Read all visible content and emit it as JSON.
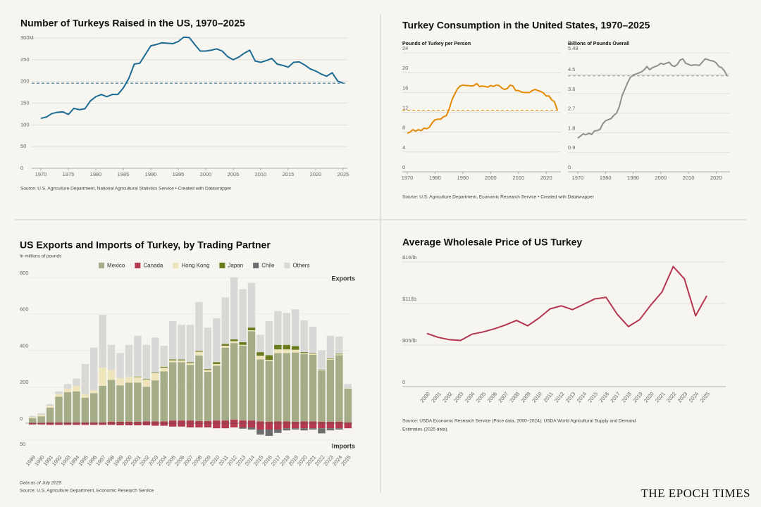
{
  "chart_data": [
    {
      "type": "line",
      "title": "Number of Turkeys Raised in the US, 1970–2025",
      "x": [
        1970,
        1971,
        1972,
        1973,
        1974,
        1975,
        1976,
        1977,
        1978,
        1979,
        1980,
        1981,
        1982,
        1983,
        1984,
        1985,
        1986,
        1987,
        1988,
        1989,
        1990,
        1991,
        1992,
        1993,
        1994,
        1995,
        1996,
        1997,
        1998,
        1999,
        2000,
        2001,
        2002,
        2003,
        2004,
        2005,
        2006,
        2007,
        2008,
        2009,
        2010,
        2011,
        2012,
        2013,
        2014,
        2015,
        2016,
        2017,
        2018,
        2019,
        2020,
        2021,
        2022,
        2023,
        2024,
        2025
      ],
      "values": [
        115,
        118,
        126,
        129,
        130,
        124,
        138,
        135,
        137,
        155,
        165,
        170,
        165,
        170,
        170,
        185,
        207,
        240,
        242,
        262,
        282,
        285,
        289,
        288,
        287,
        292,
        302,
        301,
        285,
        270,
        270,
        272,
        275,
        270,
        257,
        250,
        256,
        265,
        272,
        247,
        244,
        248,
        253,
        240,
        237,
        233,
        244,
        245,
        238,
        229,
        224,
        217,
        212,
        220,
        201,
        196
      ],
      "color": "#1d6b95",
      "reference": 196,
      "xlim": [
        1970,
        2025
      ],
      "xticks": [
        1970,
        1975,
        1980,
        1985,
        1990,
        1995,
        2000,
        2005,
        2010,
        2015,
        2020,
        2025
      ],
      "ylim": [
        0,
        300
      ],
      "yticks": [
        0,
        50,
        100,
        150,
        200,
        250,
        {
          "value": 300,
          "label": "300M"
        }
      ],
      "grid": true,
      "source": [
        "Source: U.S. Agriculture Department, National Agricultural Statistics Service • Created with Datawrapper"
      ]
    },
    {
      "type": "line",
      "title": "Turkey Consumption in the United States, 1970–2025",
      "subtitle": "Pounds of Turkey per Person",
      "x": [
        1970,
        1971,
        1972,
        1973,
        1974,
        1975,
        1976,
        1977,
        1978,
        1979,
        1980,
        1981,
        1982,
        1983,
        1984,
        1985,
        1986,
        1987,
        1988,
        1989,
        1990,
        1991,
        1992,
        1993,
        1994,
        1995,
        1996,
        1997,
        1998,
        1999,
        2000,
        2001,
        2002,
        2003,
        2004,
        2005,
        2006,
        2007,
        2008,
        2009,
        2010,
        2011,
        2012,
        2013,
        2014,
        2015,
        2016,
        2017,
        2018,
        2019,
        2020,
        2021,
        2022,
        2023,
        2024
      ],
      "values": [
        7.8,
        8.0,
        8.5,
        8.2,
        8.5,
        8.3,
        8.8,
        8.7,
        9.0,
        9.9,
        10.5,
        10.6,
        10.6,
        11.1,
        11.3,
        12.5,
        14.4,
        15.6,
        16.7,
        17.3,
        17.5,
        17.4,
        17.4,
        17.3,
        17.4,
        17.8,
        17.2,
        17.3,
        17.2,
        17.1,
        17.4,
        17.2,
        17.5,
        17.4,
        16.9,
        16.6,
        16.8,
        17.5,
        17.3,
        16.4,
        16.4,
        16.1,
        16.0,
        16.0,
        16.0,
        16.4,
        16.6,
        16.4,
        16.2,
        15.9,
        15.3,
        15.3,
        14.5,
        14.1,
        12.4
      ],
      "color": "#e58a00",
      "reference": 12.4,
      "xlim": [
        1970,
        2024
      ],
      "xticks": [
        1970,
        1980,
        1990,
        2000,
        2010,
        2020
      ],
      "ylim": [
        0,
        24
      ],
      "yticks": [
        0,
        4,
        8,
        12,
        16,
        20,
        24
      ],
      "grid": true,
      "source": [
        "Source: U.S. Agriculture Department, Economic Research Service • Created with Datawrapper"
      ]
    },
    {
      "type": "line",
      "subtitle": "Billions of Pounds Overall",
      "x": [
        1970,
        1971,
        1972,
        1973,
        1974,
        1975,
        1976,
        1977,
        1978,
        1979,
        1980,
        1981,
        1982,
        1983,
        1984,
        1985,
        1986,
        1987,
        1988,
        1989,
        1990,
        1991,
        1992,
        1993,
        1994,
        1995,
        1996,
        1997,
        1998,
        1999,
        2000,
        2001,
        2002,
        2003,
        2004,
        2005,
        2006,
        2007,
        2008,
        2009,
        2010,
        2011,
        2012,
        2013,
        2014,
        2015,
        2016,
        2017,
        2018,
        2019,
        2020,
        2021,
        2022,
        2023,
        2024
      ],
      "values": [
        1.55,
        1.65,
        1.75,
        1.7,
        1.78,
        1.72,
        1.88,
        1.9,
        1.95,
        2.2,
        2.35,
        2.4,
        2.45,
        2.6,
        2.7,
        3.0,
        3.5,
        3.8,
        4.1,
        4.35,
        4.45,
        4.5,
        4.55,
        4.6,
        4.7,
        4.85,
        4.7,
        4.8,
        4.85,
        4.9,
        5.0,
        4.95,
        5.0,
        5.05,
        4.9,
        4.85,
        4.95,
        5.15,
        5.2,
        5.0,
        4.95,
        4.9,
        4.92,
        4.92,
        4.9,
        5.05,
        5.2,
        5.17,
        5.12,
        5.1,
        5.02,
        4.85,
        4.8,
        4.65,
        4.42
      ],
      "color": "#8f8f8f",
      "reference": 4.42,
      "xlim": [
        1970,
        2024
      ],
      "xticks": [
        1970,
        1980,
        1990,
        2000,
        2010,
        2020
      ],
      "ylim": [
        0,
        5.48
      ],
      "yticks": [
        0,
        0.9,
        1.8,
        2.7,
        3.6,
        4.5,
        5.48
      ],
      "grid": true
    },
    {
      "type": "stacked_bar",
      "title": "US Exports and Imports of Turkey, by Trading Partner",
      "unit_label": "In millions of pounds",
      "exports_label": "Exports",
      "imports_label": "Imports",
      "categories": [
        "1989",
        "1990",
        "1991",
        "1992",
        "1993",
        "1994",
        "1995",
        "1996",
        "1997",
        "1998",
        "1999",
        "2000",
        "2001",
        "2002",
        "2003",
        "2004",
        "2005",
        "2006",
        "2007",
        "2008",
        "2009",
        "2010",
        "2011",
        "2012",
        "2013",
        "2014",
        "2015",
        "2016",
        "2017",
        "2018",
        "2019",
        "2020",
        "2021",
        "2022",
        "2023",
        "2024",
        "2025"
      ],
      "series": [
        {
          "name": "Mexico",
          "color": "#a4ad87",
          "values": [
            25,
            35,
            80,
            140,
            165,
            170,
            135,
            160,
            200,
            230,
            200,
            215,
            215,
            190,
            225,
            275,
            320,
            320,
            305,
            360,
            270,
            300,
            400,
            420,
            410,
            490,
            340,
            335,
            375,
            375,
            380,
            370,
            365,
            280,
            340,
            365,
            185
          ]
        },
        {
          "name": "Canada",
          "color": "#b33a4f",
          "values": [
            3,
            3,
            5,
            5,
            5,
            5,
            5,
            5,
            5,
            8,
            8,
            8,
            8,
            10,
            10,
            10,
            15,
            15,
            15,
            12,
            12,
            15,
            15,
            20,
            15,
            15,
            10,
            8,
            10,
            10,
            8,
            10,
            10,
            8,
            8,
            8,
            5
          ]
        },
        {
          "name": "Hong Kong",
          "color": "#efe5bd",
          "values": [
            5,
            8,
            10,
            15,
            20,
            30,
            20,
            15,
            100,
            55,
            40,
            30,
            30,
            40,
            40,
            20,
            10,
            10,
            10,
            20,
            10,
            10,
            10,
            10,
            5,
            5,
            20,
            5,
            20,
            20,
            15,
            5,
            5,
            2,
            5,
            5,
            2
          ]
        },
        {
          "name": "Japan",
          "color": "#6a7d1e",
          "values": [
            0,
            0,
            0,
            0,
            0,
            0,
            0,
            0,
            0,
            0,
            0,
            0,
            3,
            3,
            3,
            5,
            5,
            5,
            5,
            5,
            5,
            10,
            10,
            10,
            15,
            15,
            20,
            25,
            25,
            25,
            20,
            5,
            3,
            2,
            3,
            3,
            0
          ]
        },
        {
          "name": "Chile",
          "color": "#6e6e6e",
          "values": [
            0,
            0,
            0,
            0,
            0,
            0,
            0,
            0,
            0,
            0,
            0,
            0,
            0,
            0,
            0,
            0,
            0,
            0,
            0,
            0,
            0,
            0,
            0,
            0,
            0,
            0,
            0,
            0,
            0,
            0,
            0,
            0,
            0,
            0,
            0,
            0,
            0
          ]
        },
        {
          "name": "Others",
          "color": "#d8d8d6",
          "values": [
            7,
            9,
            10,
            15,
            25,
            40,
            165,
            235,
            290,
            137,
            137,
            177,
            224,
            187,
            192,
            115,
            210,
            190,
            205,
            268,
            228,
            240,
            255,
            340,
            290,
            245,
            95,
            187,
            185,
            175,
            202,
            175,
            147,
            108,
            124,
            94,
            23
          ]
        }
      ],
      "imports": [
        {
          "name": "Canada",
          "color": "#b33a4f",
          "values": [
            3,
            3,
            4,
            4,
            4,
            4,
            4,
            4,
            4,
            4,
            5,
            5,
            5,
            5,
            6,
            6,
            8,
            8,
            10,
            10,
            10,
            12,
            12,
            10,
            10,
            10,
            15,
            15,
            15,
            12,
            12,
            12,
            12,
            12,
            12,
            12,
            12
          ]
        },
        {
          "name": "Chile",
          "color": "#6e6e6e",
          "values": [
            0,
            0,
            0,
            0,
            0,
            0,
            0,
            0,
            0,
            0,
            0,
            0,
            0,
            0,
            0,
            0,
            0,
            0,
            0,
            0,
            0,
            0,
            0,
            0,
            3,
            5,
            12,
            15,
            8,
            5,
            3,
            5,
            3,
            12,
            5,
            3,
            0
          ]
        }
      ],
      "ylim": [
        0,
        800
      ],
      "yticks": [
        0,
        200,
        400,
        600,
        800
      ],
      "imports_ylim": [
        0,
        50
      ],
      "imports_ticks": [
        50
      ],
      "note": "Data as of July 2025",
      "source": [
        "Source: U.S. Agriculture Department, Economic Research Service"
      ]
    },
    {
      "type": "line",
      "title": "Average Wholesale Price of US Turkey",
      "categories": [
        "2000",
        "2001",
        "2002",
        "2003",
        "2004",
        "2005",
        "2006",
        "2007",
        "2008",
        "2009",
        "2010",
        "2011",
        "2012",
        "2013",
        "2014",
        "2015",
        "2016",
        "2017",
        "2018",
        "2019",
        "2020",
        "2021",
        "2022",
        "2023",
        "2024",
        "2025"
      ],
      "values": [
        6.9,
        6.4,
        6.1,
        6.0,
        6.8,
        7.1,
        7.5,
        8.0,
        8.6,
        7.9,
        8.9,
        10.1,
        10.5,
        10.0,
        10.7,
        11.4,
        11.6,
        9.4,
        7.8,
        8.7,
        10.6,
        12.3,
        15.6,
        14.0,
        9.2,
        11.8
      ],
      "color": "#b4354d",
      "ylim": [
        0,
        16.2
      ],
      "yticks": [
        0,
        {
          "value": 5.4,
          "label": "$05/lb"
        },
        {
          "value": 10.8,
          "label": "$11/lb"
        },
        {
          "value": 16.2,
          "label": "$16/lb"
        }
      ],
      "grid": true,
      "source": [
        "Source: USDA Economic Research Service (Price data, 2000–2024); USDA World Agricultural Supply and Demand",
        "Estimates (2025 data)."
      ]
    }
  ],
  "brand": "THE EPOCH TIMES"
}
